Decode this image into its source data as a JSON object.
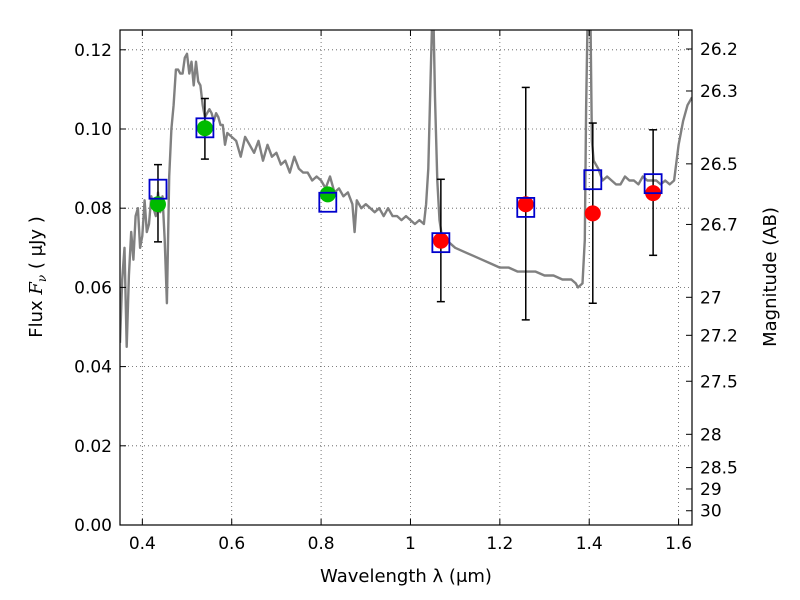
{
  "chart_data": {
    "type": "scatter",
    "xlabel": "Wavelength  λ (μm)",
    "ylabel": "Flux  F_ν  ( μJy )",
    "y2label": "Magnitude (AB)",
    "xlim": [
      0.35,
      1.63
    ],
    "ylim": [
      0.0,
      0.125
    ],
    "grid": true,
    "x_ticks": [
      0.4,
      0.6,
      0.8,
      1.0,
      1.2,
      1.4,
      1.6
    ],
    "x_tick_labels": [
      "0.4",
      "0.6",
      "0.8",
      "1",
      "1.2",
      "1.4",
      "1.6"
    ],
    "y_ticks": [
      0.0,
      0.02,
      0.04,
      0.06,
      0.08,
      0.1,
      0.12
    ],
    "y_tick_labels": [
      "0.00",
      "0.02",
      "0.04",
      "0.06",
      "0.08",
      "0.10",
      "0.12"
    ],
    "y2_ticks": [
      {
        "flux": 0.1202,
        "label": "26.2"
      },
      {
        "flux": 0.1096,
        "label": "26.3"
      },
      {
        "flux": 0.0912,
        "label": "26.5"
      },
      {
        "flux": 0.0759,
        "label": "26.7"
      },
      {
        "flux": 0.0575,
        "label": "27"
      },
      {
        "flux": 0.0479,
        "label": "27.2"
      },
      {
        "flux": 0.0363,
        "label": "27.5"
      },
      {
        "flux": 0.0229,
        "label": "28"
      },
      {
        "flux": 0.0145,
        "label": "28.5"
      },
      {
        "flux": 0.0091,
        "label": "29"
      },
      {
        "flux": 0.0036,
        "label": "30"
      }
    ],
    "colors": {
      "model": "#808080",
      "optical": "#00bb00",
      "infrared": "#ff0000",
      "box": "#0000cc",
      "errorbar": "#000000"
    },
    "series": [
      {
        "kind": "model_spectrum",
        "points": [
          [
            0.35,
            0.046
          ],
          [
            0.355,
            0.062
          ],
          [
            0.36,
            0.07
          ],
          [
            0.365,
            0.045
          ],
          [
            0.37,
            0.063
          ],
          [
            0.375,
            0.074
          ],
          [
            0.38,
            0.067
          ],
          [
            0.385,
            0.078
          ],
          [
            0.39,
            0.08
          ],
          [
            0.395,
            0.07
          ],
          [
            0.4,
            0.073
          ],
          [
            0.405,
            0.082
          ],
          [
            0.41,
            0.074
          ],
          [
            0.415,
            0.076
          ],
          [
            0.42,
            0.083
          ],
          [
            0.425,
            0.08
          ],
          [
            0.43,
            0.078
          ],
          [
            0.435,
            0.084
          ],
          [
            0.44,
            0.079
          ],
          [
            0.445,
            0.083
          ],
          [
            0.45,
            0.072
          ],
          [
            0.455,
            0.056
          ],
          [
            0.46,
            0.088
          ],
          [
            0.465,
            0.1
          ],
          [
            0.47,
            0.106
          ],
          [
            0.475,
            0.115
          ],
          [
            0.48,
            0.115
          ],
          [
            0.485,
            0.114
          ],
          [
            0.49,
            0.114
          ],
          [
            0.495,
            0.118
          ],
          [
            0.5,
            0.119
          ],
          [
            0.505,
            0.114
          ],
          [
            0.51,
            0.117
          ],
          [
            0.515,
            0.111
          ],
          [
            0.52,
            0.117
          ],
          [
            0.525,
            0.112
          ],
          [
            0.53,
            0.111
          ],
          [
            0.535,
            0.106
          ],
          [
            0.54,
            0.103
          ],
          [
            0.545,
            0.104
          ],
          [
            0.55,
            0.105
          ],
          [
            0.555,
            0.104
          ],
          [
            0.56,
            0.102
          ],
          [
            0.565,
            0.104
          ],
          [
            0.57,
            0.103
          ],
          [
            0.575,
            0.101
          ],
          [
            0.58,
            0.101
          ],
          [
            0.585,
            0.096
          ],
          [
            0.59,
            0.099
          ],
          [
            0.6,
            0.098
          ],
          [
            0.61,
            0.097
          ],
          [
            0.62,
            0.093
          ],
          [
            0.63,
            0.098
          ],
          [
            0.64,
            0.096
          ],
          [
            0.65,
            0.094
          ],
          [
            0.66,
            0.097
          ],
          [
            0.67,
            0.092
          ],
          [
            0.68,
            0.096
          ],
          [
            0.69,
            0.093
          ],
          [
            0.7,
            0.094
          ],
          [
            0.71,
            0.091
          ],
          [
            0.72,
            0.092
          ],
          [
            0.73,
            0.089
          ],
          [
            0.74,
            0.093
          ],
          [
            0.75,
            0.09
          ],
          [
            0.76,
            0.089
          ],
          [
            0.77,
            0.089
          ],
          [
            0.78,
            0.087
          ],
          [
            0.79,
            0.088
          ],
          [
            0.8,
            0.087
          ],
          [
            0.81,
            0.085
          ],
          [
            0.82,
            0.088
          ],
          [
            0.83,
            0.084
          ],
          [
            0.84,
            0.085
          ],
          [
            0.85,
            0.083
          ],
          [
            0.86,
            0.084
          ],
          [
            0.87,
            0.081
          ],
          [
            0.875,
            0.074
          ],
          [
            0.88,
            0.082
          ],
          [
            0.89,
            0.08
          ],
          [
            0.9,
            0.081
          ],
          [
            0.91,
            0.08
          ],
          [
            0.92,
            0.079
          ],
          [
            0.93,
            0.08
          ],
          [
            0.94,
            0.078
          ],
          [
            0.95,
            0.08
          ],
          [
            0.96,
            0.078
          ],
          [
            0.97,
            0.078
          ],
          [
            0.98,
            0.077
          ],
          [
            0.99,
            0.078
          ],
          [
            1.0,
            0.077
          ],
          [
            1.01,
            0.076
          ],
          [
            1.02,
            0.077
          ],
          [
            1.03,
            0.076
          ],
          [
            1.035,
            0.081
          ],
          [
            1.04,
            0.09
          ],
          [
            1.045,
            0.113
          ],
          [
            1.048,
            0.125
          ],
          [
            1.052,
            0.125
          ],
          [
            1.055,
            0.108
          ],
          [
            1.06,
            0.087
          ],
          [
            1.065,
            0.077
          ],
          [
            1.07,
            0.073
          ],
          [
            1.08,
            0.072
          ],
          [
            1.1,
            0.07
          ],
          [
            1.12,
            0.069
          ],
          [
            1.14,
            0.068
          ],
          [
            1.16,
            0.067
          ],
          [
            1.18,
            0.066
          ],
          [
            1.2,
            0.065
          ],
          [
            1.22,
            0.065
          ],
          [
            1.24,
            0.064
          ],
          [
            1.26,
            0.064
          ],
          [
            1.28,
            0.064
          ],
          [
            1.3,
            0.063
          ],
          [
            1.32,
            0.063
          ],
          [
            1.34,
            0.062
          ],
          [
            1.36,
            0.062
          ],
          [
            1.37,
            0.061
          ],
          [
            1.375,
            0.06
          ],
          [
            1.385,
            0.061
          ],
          [
            1.39,
            0.072
          ],
          [
            1.393,
            0.105
          ],
          [
            1.396,
            0.125
          ],
          [
            1.403,
            0.125
          ],
          [
            1.406,
            0.097
          ],
          [
            1.41,
            0.092
          ],
          [
            1.42,
            0.09
          ],
          [
            1.43,
            0.087
          ],
          [
            1.44,
            0.088
          ],
          [
            1.45,
            0.087
          ],
          [
            1.46,
            0.086
          ],
          [
            1.47,
            0.086
          ],
          [
            1.48,
            0.088
          ],
          [
            1.49,
            0.087
          ],
          [
            1.5,
            0.087
          ],
          [
            1.51,
            0.086
          ],
          [
            1.52,
            0.088
          ],
          [
            1.53,
            0.087
          ],
          [
            1.54,
            0.087
          ],
          [
            1.55,
            0.087
          ],
          [
            1.56,
            0.086
          ],
          [
            1.57,
            0.087
          ],
          [
            1.58,
            0.086
          ],
          [
            1.59,
            0.087
          ],
          [
            1.6,
            0.096
          ],
          [
            1.61,
            0.102
          ],
          [
            1.62,
            0.106
          ],
          [
            1.63,
            0.108
          ]
        ]
      },
      {
        "kind": "observed",
        "group": "optical",
        "points": [
          {
            "x": 0.435,
            "y": 0.081,
            "err_lo": 0.0095,
            "err_hi": 0.01
          },
          {
            "x": 0.54,
            "y": 0.1002,
            "err_lo": 0.0078,
            "err_hi": 0.0075
          },
          {
            "x": 0.815,
            "y": 0.0835,
            "err_lo": 0.0,
            "err_hi": 0.0
          }
        ]
      },
      {
        "kind": "observed",
        "group": "infrared",
        "points": [
          {
            "x": 1.068,
            "y": 0.0718,
            "err_lo": 0.0154,
            "err_hi": 0.0155
          },
          {
            "x": 1.258,
            "y": 0.081,
            "err_lo": 0.0292,
            "err_hi": 0.0295
          },
          {
            "x": 1.408,
            "y": 0.0787,
            "err_lo": 0.0227,
            "err_hi": 0.0228
          },
          {
            "x": 1.543,
            "y": 0.0838,
            "err_lo": 0.0157,
            "err_hi": 0.016
          }
        ]
      },
      {
        "kind": "model_photometry",
        "points": [
          {
            "x": 0.435,
            "y": 0.0848
          },
          {
            "x": 0.54,
            "y": 0.1003
          },
          {
            "x": 0.815,
            "y": 0.0815
          },
          {
            "x": 1.068,
            "y": 0.0713
          },
          {
            "x": 1.258,
            "y": 0.0802
          },
          {
            "x": 1.408,
            "y": 0.0872
          },
          {
            "x": 1.543,
            "y": 0.0862
          }
        ]
      }
    ]
  }
}
